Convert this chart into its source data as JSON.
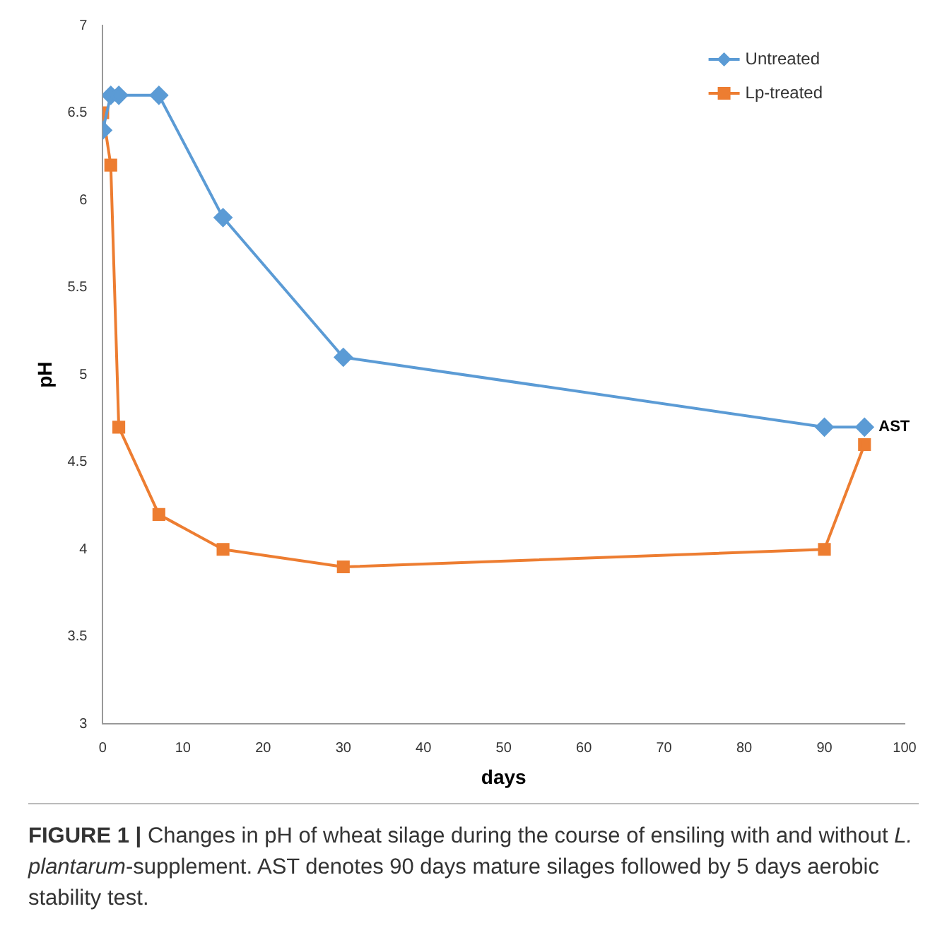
{
  "chart_data": {
    "type": "line",
    "xlabel": "days",
    "ylabel": "pH",
    "xlim": [
      0,
      100
    ],
    "xticks": [
      0,
      10,
      20,
      30,
      40,
      50,
      60,
      70,
      80,
      90,
      100
    ],
    "ylim": [
      3,
      7
    ],
    "yticks": [
      3,
      3.5,
      4,
      4.5,
      5,
      5.5,
      6,
      6.5,
      7
    ],
    "grid": false,
    "legend": "top right",
    "series": [
      {
        "name": "Untreated",
        "color": "#5b9bd5",
        "marker": "diamond",
        "x": [
          0,
          1,
          2,
          7,
          15,
          30,
          90,
          95
        ],
        "values": [
          6.4,
          6.6,
          6.6,
          6.6,
          5.9,
          5.1,
          4.7,
          4.7
        ]
      },
      {
        "name": "Lp-treated",
        "color": "#ed7d31",
        "marker": "square",
        "x": [
          0,
          1,
          2,
          7,
          15,
          30,
          90,
          95
        ],
        "values": [
          6.5,
          6.2,
          4.7,
          4.2,
          4.0,
          3.9,
          4.0,
          4.6
        ]
      }
    ],
    "annotations": [
      {
        "text": "AST",
        "x": 95,
        "y": 4.7
      },
      "**FIGURE 1 |** Changes in pH of wheat silage during the course of ensiling with and without *L. plantarum*-supplement. AST denotes 90 days mature silages followed by 5 days aerobic stability test."
    ]
  }
}
